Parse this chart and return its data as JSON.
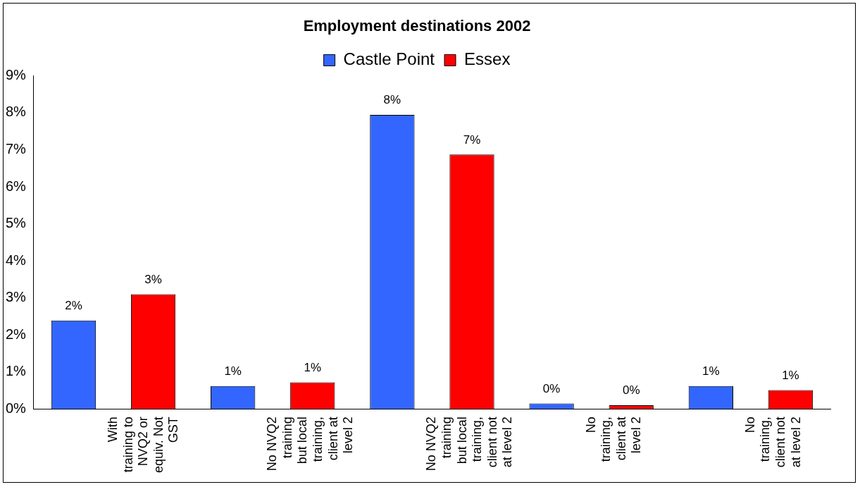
{
  "chart_data": {
    "type": "bar",
    "title": "Employment destinations 2002",
    "categories": [
      "With training to NVQ2 or equiv. Not GST",
      "No NVQ2 training but local training, client at level 2",
      "No NVQ2 training but local training, client not at level 2",
      "No training, client at level 2",
      "No training, client not at level 2"
    ],
    "series": [
      {
        "name": "Castle Point",
        "color": "#3366ff",
        "values": [
          2.39,
          0.62,
          7.94,
          0.15,
          0.62
        ],
        "value_labels": [
          "2%",
          "1%",
          "8%",
          "0%",
          "1%"
        ]
      },
      {
        "name": "Essex",
        "color": "#ff0000",
        "values": [
          3.1,
          0.72,
          6.87,
          0.1,
          0.51
        ],
        "value_labels": [
          "3%",
          "1%",
          "7%",
          "0%",
          "1%"
        ]
      }
    ],
    "ylim": [
      0,
      9
    ],
    "yticks": [
      {
        "value": 0,
        "label": "0%"
      },
      {
        "value": 1,
        "label": "1%"
      },
      {
        "value": 2,
        "label": "2%"
      },
      {
        "value": 3,
        "label": "3%"
      },
      {
        "value": 4,
        "label": "4%"
      },
      {
        "value": 5,
        "label": "5%"
      },
      {
        "value": 6,
        "label": "6%"
      },
      {
        "value": 7,
        "label": "7%"
      },
      {
        "value": 8,
        "label": "8%"
      },
      {
        "value": 9,
        "label": "9%"
      }
    ],
    "grid": false,
    "legend": "top"
  }
}
